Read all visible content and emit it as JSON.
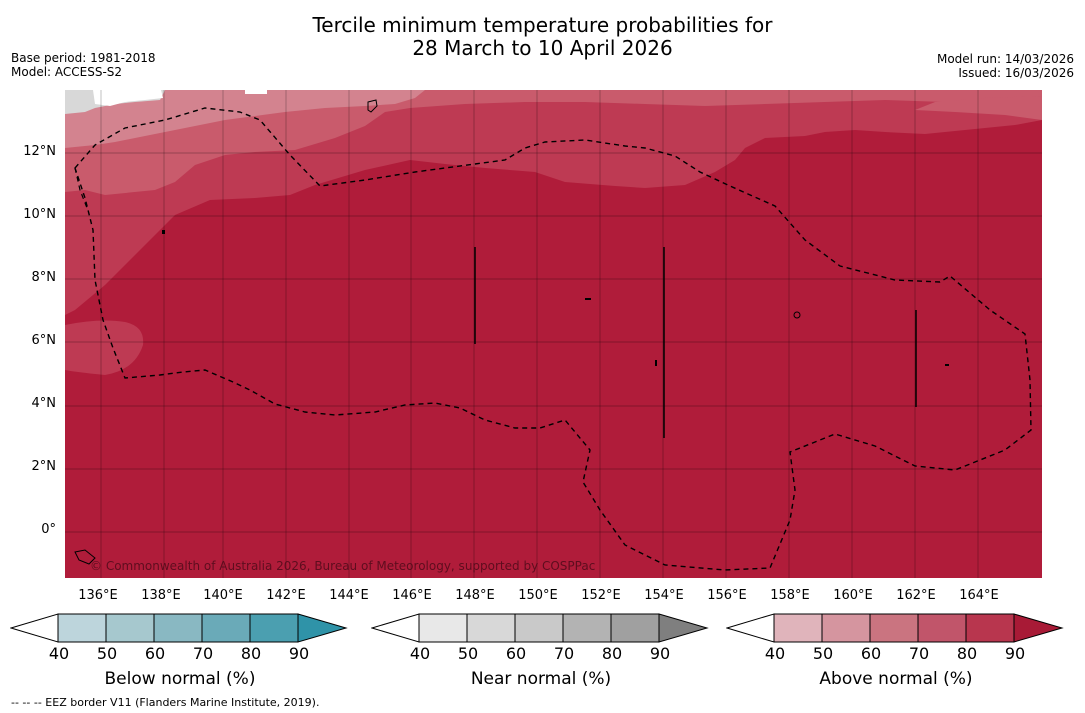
{
  "title_line1": "Tercile minimum temperature probabilities for",
  "title_line2": "28 March to 10 April 2026",
  "meta_left": {
    "base_period": "Base period: 1981-2018",
    "model": "Model: ACCESS-S2"
  },
  "meta_right": {
    "model_run": "Model run: 14/03/2026",
    "issued": "Issued: 16/03/2026"
  },
  "map": {
    "lon_labels": [
      "136°E",
      "138°E",
      "140°E",
      "142°E",
      "144°E",
      "146°E",
      "148°E",
      "150°E",
      "152°E",
      "154°E",
      "156°E",
      "158°E",
      "160°E",
      "162°E",
      "164°E"
    ],
    "lat_labels": [
      "12°N",
      "10°N",
      "8°N",
      "6°N",
      "4°N",
      "2°N",
      "0°"
    ],
    "copyright": "© Commonwealth of Australia 2026, Bureau of Meteorology, supported by COSPPac",
    "colors": {
      "above_90": "#b01c3a",
      "above_80": "#be3a53",
      "above_70": "#c95b6c",
      "above_60": "#d3838f",
      "above_50": "#e0b4bb",
      "near_50": "#d8d8d8",
      "nodata": "#ffffff"
    }
  },
  "legend": {
    "ticks": [
      "40",
      "50",
      "60",
      "70",
      "80",
      "90"
    ],
    "below": {
      "title": "Below normal (%)",
      "colors": [
        "#ffffff",
        "#bdd5dc",
        "#a6c8ce",
        "#89b8c2",
        "#6aaab8",
        "#4b9fb0",
        "#2f93a8"
      ]
    },
    "near": {
      "title": "Near normal (%)",
      "colors": [
        "#ffffff",
        "#e8e8e8",
        "#d8d8d8",
        "#c9c9c9",
        "#b3b3b3",
        "#a0a0a0",
        "#7f7f7f"
      ]
    },
    "above": {
      "title": "Above normal (%)",
      "colors": [
        "#ffffff",
        "#e0b4bb",
        "#d5959f",
        "#ca7480",
        "#c1556a",
        "#b8364e",
        "#a81a36"
      ]
    }
  },
  "footnote": "--  --  -- EEZ border V11 (Flanders Marine Institute, 2019)."
}
